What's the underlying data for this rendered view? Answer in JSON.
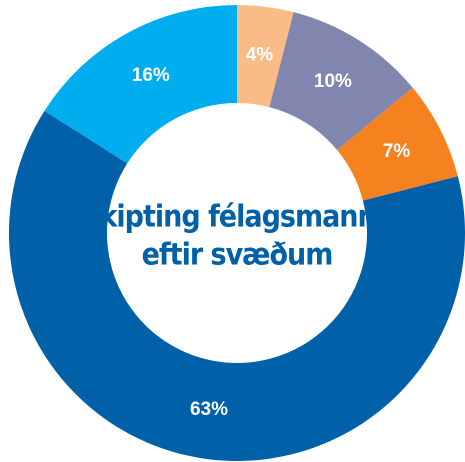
{
  "chart_data": {
    "type": "donut",
    "title": [
      "Skipting félagsmanna",
      "eftir svæðum"
    ],
    "values": [
      4,
      10,
      7,
      63,
      16
    ],
    "value_labels": [
      "4%",
      "10%",
      "7%",
      "63%",
      "16%"
    ],
    "colors": [
      "#f9bc87",
      "#8086ae",
      "#f5821f",
      "#0061a8",
      "#00aeef"
    ]
  }
}
